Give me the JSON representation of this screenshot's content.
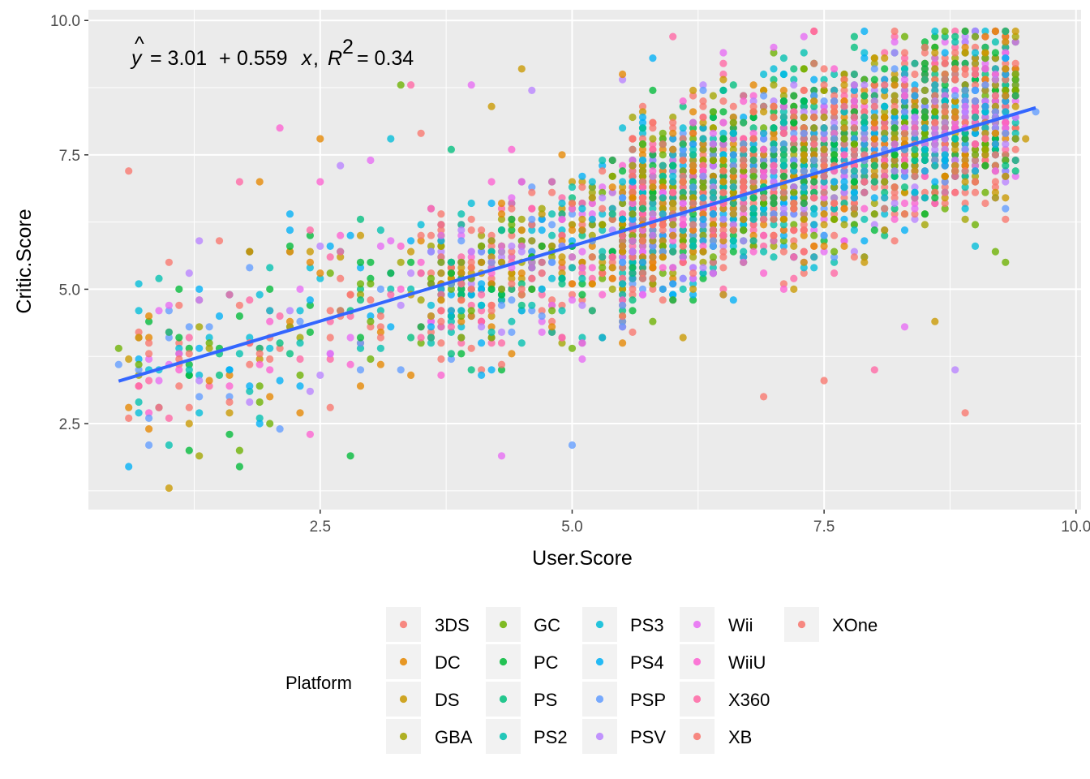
{
  "chart_data": {
    "type": "scatter",
    "xlabel": "User.Score",
    "ylabel": "Critic.Score",
    "xlim": [
      0.2,
      10.05
    ],
    "ylim": [
      0.9,
      10.2
    ],
    "x_ticks": [
      "2.5",
      "5.0",
      "7.5",
      "10.0"
    ],
    "y_ticks": [
      "2.5",
      "5.0",
      "7.5",
      "10.0"
    ],
    "grid": true,
    "legend_position": "bottom",
    "legend_title": "Platform",
    "series": [
      {
        "name": "3DS",
        "color": "#F8766D"
      },
      {
        "name": "DC",
        "color": "#E58700"
      },
      {
        "name": "DS",
        "color": "#C99800"
      },
      {
        "name": "GBA",
        "color": "#A3A500"
      },
      {
        "name": "GC",
        "color": "#6BB100"
      },
      {
        "name": "PC",
        "color": "#00BA38"
      },
      {
        "name": "PS",
        "color": "#00BF7D"
      },
      {
        "name": "PS2",
        "color": "#00C0AF"
      },
      {
        "name": "PS3",
        "color": "#00BCD8"
      },
      {
        "name": "PS4",
        "color": "#00B0F6"
      },
      {
        "name": "PSP",
        "color": "#619CFF"
      },
      {
        "name": "PSV",
        "color": "#B983FF"
      },
      {
        "name": "Wii",
        "color": "#E76BF3"
      },
      {
        "name": "WiiU",
        "color": "#FD61D1"
      },
      {
        "name": "X360",
        "color": "#FF67A4"
      },
      {
        "name": "XB",
        "color": "#F8766D"
      },
      {
        "name": "XOne",
        "color": "#F8766D"
      }
    ],
    "regression": {
      "intercept": 3.01,
      "slope": 0.559,
      "r_squared": 0.34,
      "x_range": [
        0.5,
        9.6
      ],
      "color": "#3366FF",
      "equation_parts": {
        "prefix": "= 3.01",
        "plus": "+",
        "slope_term": "0.559",
        "var": "x",
        "r": "R",
        "sq": "2",
        "r_value": "= 0.34"
      }
    },
    "points_sample": [
      [
        0.5,
        3.9
      ],
      [
        0.5,
        3.6
      ],
      [
        0.6,
        7.2
      ],
      [
        0.7,
        3.2
      ],
      [
        0.9,
        2.8
      ],
      [
        1.0,
        4.2
      ],
      [
        1.0,
        1.3
      ],
      [
        1.2,
        3.5
      ],
      [
        1.3,
        4.3
      ],
      [
        1.3,
        1.9
      ],
      [
        1.5,
        4.5
      ],
      [
        1.6,
        4.9
      ],
      [
        1.6,
        3.2
      ],
      [
        1.8,
        5.7
      ],
      [
        1.8,
        5.4
      ],
      [
        1.7,
        7.0
      ],
      [
        1.9,
        7.0
      ],
      [
        1.7,
        2.0
      ],
      [
        1.7,
        1.7
      ],
      [
        2.0,
        2.5
      ],
      [
        2.1,
        8.0
      ],
      [
        2.2,
        6.4
      ],
      [
        2.3,
        5.0
      ],
      [
        2.4,
        2.3
      ],
      [
        2.5,
        7.8
      ],
      [
        2.5,
        7.0
      ],
      [
        2.5,
        5.8
      ],
      [
        2.7,
        7.3
      ],
      [
        2.8,
        6.0
      ],
      [
        2.8,
        1.9
      ],
      [
        3.0,
        7.4
      ],
      [
        3.2,
        7.8
      ],
      [
        3.3,
        8.8
      ],
      [
        3.4,
        8.8
      ],
      [
        3.5,
        7.9
      ],
      [
        3.7,
        6.0
      ],
      [
        3.8,
        7.6
      ],
      [
        4.0,
        8.8
      ],
      [
        4.2,
        8.4
      ],
      [
        4.3,
        1.9
      ],
      [
        4.5,
        9.1
      ],
      [
        4.6,
        8.7
      ],
      [
        5.0,
        2.1
      ],
      [
        5.5,
        8.9
      ],
      [
        5.5,
        9.0
      ],
      [
        5.8,
        9.3
      ],
      [
        6.0,
        9.7
      ],
      [
        6.5,
        8.9
      ],
      [
        6.9,
        3.0
      ],
      [
        7.0,
        9.5
      ],
      [
        7.5,
        3.3
      ],
      [
        7.8,
        9.7
      ],
      [
        8.0,
        3.5
      ],
      [
        8.3,
        4.3
      ],
      [
        8.6,
        4.4
      ],
      [
        8.8,
        3.5
      ],
      [
        8.9,
        2.7
      ],
      [
        9.1,
        9.7
      ],
      [
        9.2,
        5.7
      ],
      [
        9.3,
        5.5
      ],
      [
        9.5,
        7.8
      ],
      [
        9.6,
        8.3
      ]
    ]
  }
}
